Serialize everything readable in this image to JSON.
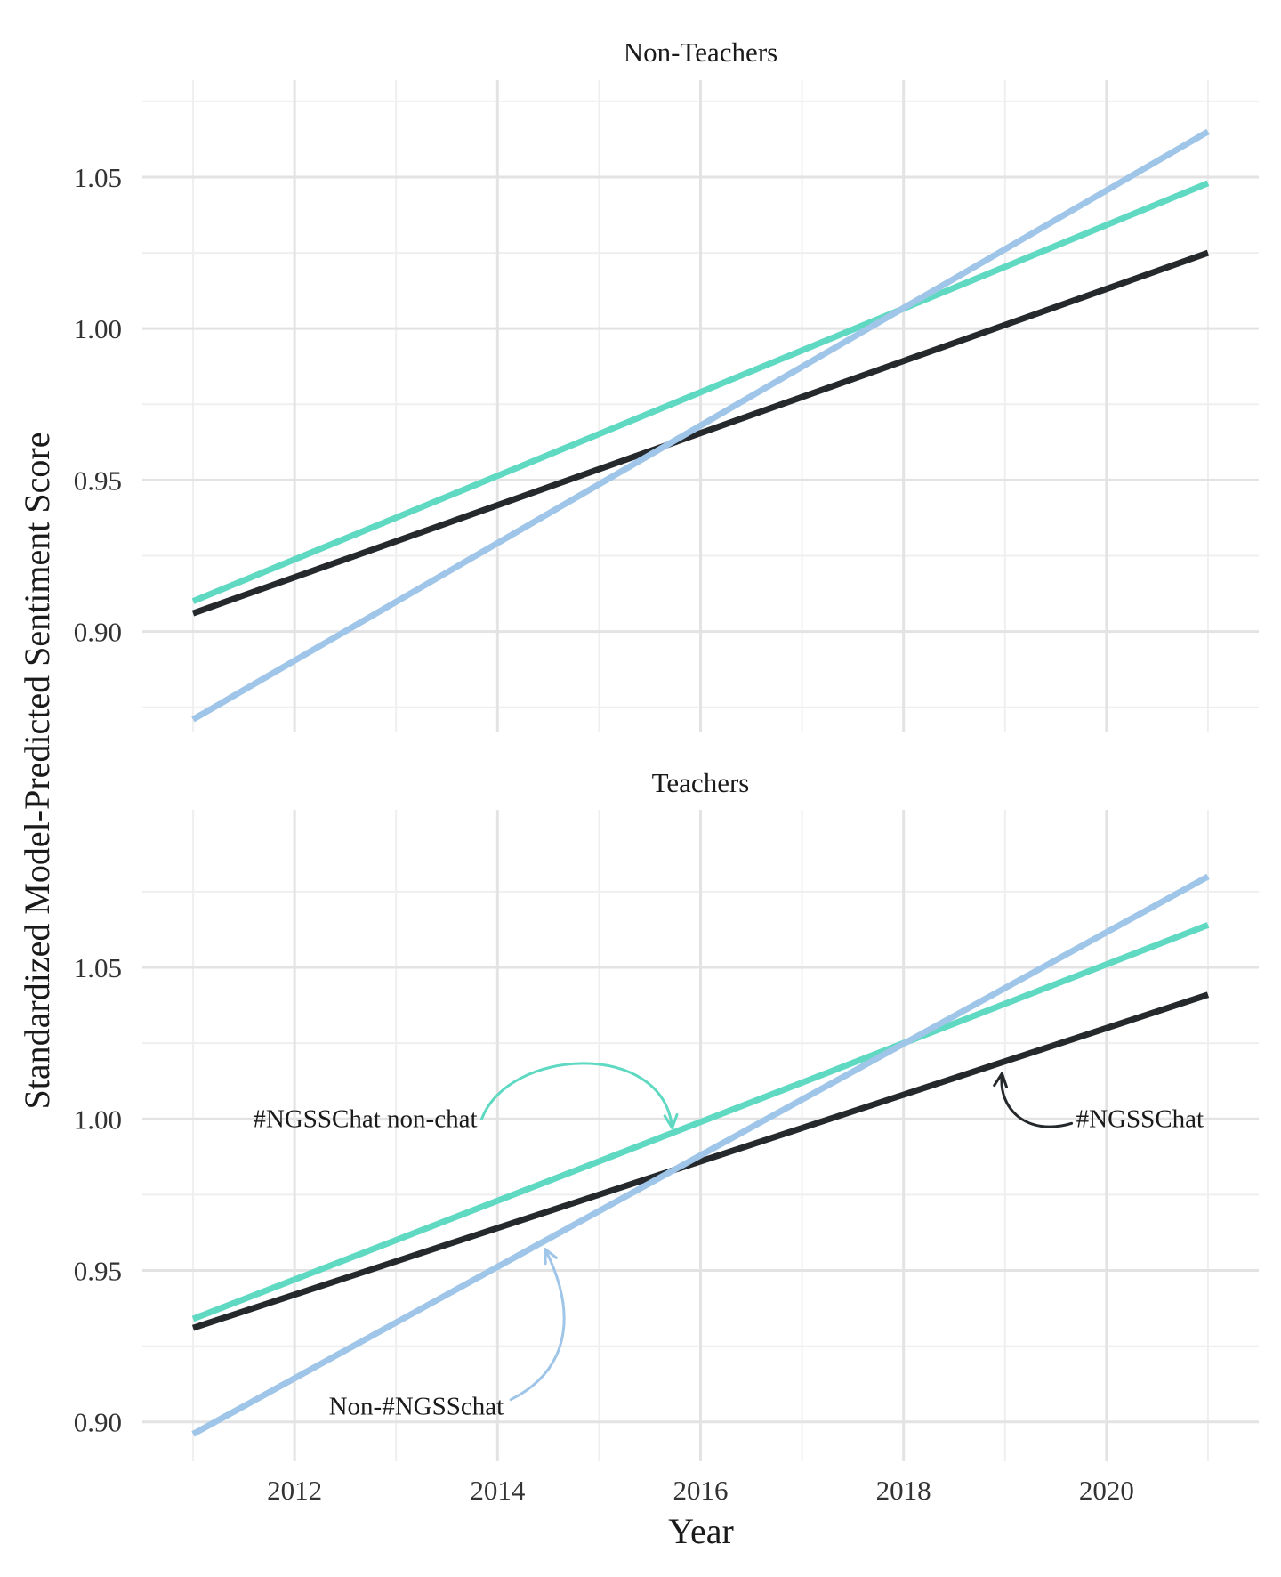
{
  "chart_data": {
    "type": "line",
    "xlabel": "Year",
    "ylabel": "Standardized Model-Predicted Sentiment Score",
    "xlim": [
      2010.5,
      2021.5
    ],
    "x_ticks": [
      2012,
      2014,
      2016,
      2018,
      2020
    ],
    "x_tick_labels": [
      "2012",
      "2014",
      "2016",
      "2018",
      "2020"
    ],
    "grid": true,
    "colors": {
      "#NGSSChat": "#26292c",
      "#NGSSChat non-chat": "#5fd9c2",
      "Non-#NGSSchat": "#9fc5e8"
    },
    "panels": [
      {
        "title": "Non-Teachers",
        "ylim": [
          0.867,
          1.082
        ],
        "y_ticks": [
          0.9,
          0.95,
          1.0,
          1.05
        ],
        "y_tick_labels": [
          "0.90",
          "0.95",
          "1.00",
          "1.05"
        ],
        "series": [
          {
            "key": "#NGSSChat",
            "x": [
              2011,
              2021
            ],
            "values": [
              0.906,
              1.025
            ]
          },
          {
            "key": "#NGSSChat non-chat",
            "x": [
              2011,
              2021
            ],
            "values": [
              0.91,
              1.048
            ]
          },
          {
            "key": "Non-#NGSSchat",
            "x": [
              2011,
              2021
            ],
            "values": [
              0.871,
              1.065
            ]
          }
        ],
        "annotations": []
      },
      {
        "title": "Teachers",
        "ylim": [
          0.887,
          1.102
        ],
        "y_ticks": [
          0.9,
          0.95,
          1.0,
          1.05
        ],
        "y_tick_labels": [
          "0.90",
          "0.95",
          "1.00",
          "1.05"
        ],
        "series": [
          {
            "key": "#NGSSChat",
            "x": [
              2011,
              2021
            ],
            "values": [
              0.931,
              1.041
            ]
          },
          {
            "key": "#NGSSChat non-chat",
            "x": [
              2011,
              2021
            ],
            "values": [
              0.934,
              1.064
            ]
          },
          {
            "key": "Non-#NGSSchat",
            "x": [
              2011,
              2021
            ],
            "values": [
              0.896,
              1.08
            ]
          }
        ],
        "annotations": [
          {
            "text": "#NGSSChat non-chat",
            "series": "#NGSSChat non-chat",
            "text_x": 2013.8,
            "text_y": 1.0,
            "anchor": "end",
            "arrow_to": [
              2015.72,
              0.997
            ],
            "arc": "over"
          },
          {
            "text": "#NGSSChat",
            "series": "#NGSSChat",
            "text_x": 2019.7,
            "text_y": 1.0,
            "anchor": "start",
            "arrow_to": [
              2018.97,
              1.015
            ],
            "arc": "under"
          },
          {
            "text": "Non-#NGSSchat",
            "series": "Non-#NGSSchat",
            "text_x": 2014.06,
            "text_y": 0.905,
            "anchor": "end",
            "arrow_to": [
              2014.47,
              0.957
            ],
            "arc": "side"
          }
        ]
      }
    ]
  }
}
